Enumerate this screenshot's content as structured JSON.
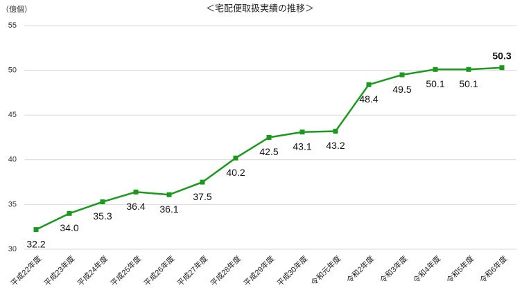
{
  "chart_data": {
    "type": "line",
    "title": "＜宅配便取扱実績の推移＞",
    "y_label": "（億個）",
    "categories": [
      "平成22年度",
      "平成23年度",
      "平成24年度",
      "平成25年度",
      "平成26年度",
      "平成27年度",
      "平成28年度",
      "平成29年度",
      "平成30年度",
      "令和元年度",
      "令和2年度",
      "令和3年度",
      "令和4年度",
      "令和5年度",
      "令和6年度"
    ],
    "series": [
      {
        "name": "宅配便取扱実績",
        "color": "#1a9a1a",
        "values": [
          32.2,
          34.0,
          35.3,
          36.4,
          36.1,
          37.5,
          40.2,
          42.5,
          43.1,
          43.2,
          48.4,
          49.5,
          50.1,
          50.1,
          50.3
        ],
        "value_labels": [
          "32.2",
          "34.0",
          "35.3",
          "36.4",
          "36.1",
          "37.5",
          "40.2",
          "42.5",
          "43.1",
          "43.2",
          "48.4",
          "49.5",
          "50.1",
          "50.1",
          "50.3"
        ]
      }
    ],
    "highlight": {
      "index": 14,
      "color": "#ff0000"
    },
    "ylim": [
      30,
      55
    ],
    "yticks": [
      30,
      35,
      40,
      45,
      50,
      55
    ],
    "grid": true
  }
}
